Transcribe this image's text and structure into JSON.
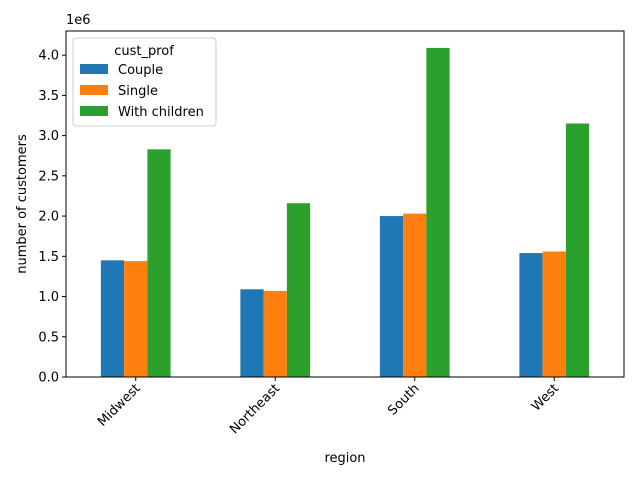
{
  "chart_data": {
    "type": "bar",
    "categories": [
      "Midwest",
      "Northeast",
      "South",
      "West"
    ],
    "series": [
      {
        "name": "Couple",
        "color": "#1f77b4",
        "values": [
          1450000,
          1090000,
          2000000,
          1540000
        ]
      },
      {
        "name": "Single",
        "color": "#ff7f0e",
        "values": [
          1440000,
          1070000,
          2030000,
          1560000
        ]
      },
      {
        "name": "With children",
        "color": "#2ca02c",
        "values": [
          2830000,
          2160000,
          4090000,
          3150000
        ]
      }
    ],
    "xlabel": "region",
    "ylabel": "number of customers",
    "offset_label": "1e6",
    "y_scale_factor": 1000000,
    "ylim": [
      0,
      4.3
    ],
    "yticks": [
      "0.0",
      "0.5",
      "1.0",
      "1.5",
      "2.0",
      "2.5",
      "3.0",
      "3.5",
      "4.0"
    ],
    "legend": {
      "title": "cust_prof",
      "placement": "top-left"
    },
    "grid": false,
    "xtick_rotation": 45
  }
}
